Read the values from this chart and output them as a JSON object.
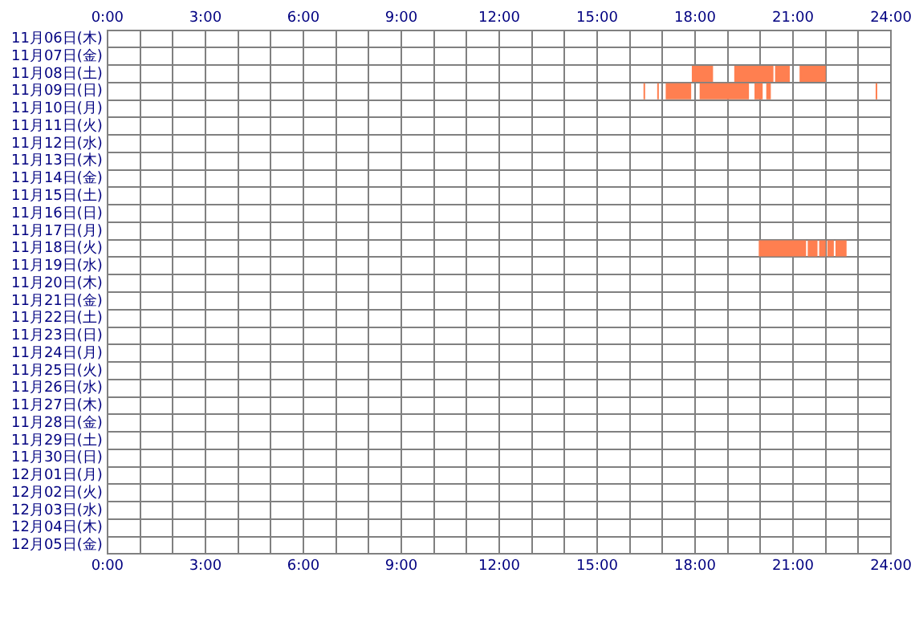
{
  "chart_data": {
    "type": "bar",
    "orientation": "horizontal",
    "categories": [
      "11月06日(木)",
      "11月07日(金)",
      "11月08日(土)",
      "11月09日(日)",
      "11月10日(月)",
      "11月11日(火)",
      "11月12日(水)",
      "11月13日(木)",
      "11月14日(金)",
      "11月15日(土)",
      "11月16日(日)",
      "11月17日(月)",
      "11月18日(火)",
      "11月19日(水)",
      "11月20日(木)",
      "11月21日(金)",
      "11月22日(土)",
      "11月23日(日)",
      "11月24日(月)",
      "11月25日(火)",
      "11月26日(水)",
      "11月27日(木)",
      "11月28日(金)",
      "11月29日(土)",
      "11月30日(日)",
      "12月01日(月)",
      "12月02日(火)",
      "12月03日(水)",
      "12月04日(木)",
      "12月05日(金)"
    ],
    "series": [
      {
        "color": "#ff7f50",
        "base": [
          null,
          null,
          17.9,
          16.42,
          null,
          null,
          null,
          null,
          null,
          null,
          null,
          null,
          19.95,
          null,
          null,
          null,
          null,
          null,
          null,
          null,
          null,
          null,
          null,
          null,
          null,
          null,
          null,
          null,
          null,
          null
        ],
        "values": [
          null,
          null,
          0.65,
          0.05,
          null,
          null,
          null,
          null,
          null,
          null,
          null,
          null,
          1.45,
          null,
          null,
          null,
          null,
          null,
          null,
          null,
          null,
          null,
          null,
          null,
          null,
          null,
          null,
          null,
          null,
          null
        ]
      },
      {
        "color": "#ff7f50",
        "base": [
          null,
          null,
          19.2,
          16.84,
          null,
          null,
          null,
          null,
          null,
          null,
          null,
          null,
          21.45,
          null,
          null,
          null,
          null,
          null,
          null,
          null,
          null,
          null,
          null,
          null,
          null,
          null,
          null,
          null,
          null,
          null
        ],
        "values": [
          null,
          null,
          1.2,
          0.05,
          null,
          null,
          null,
          null,
          null,
          null,
          null,
          null,
          0.3,
          null,
          null,
          null,
          null,
          null,
          null,
          null,
          null,
          null,
          null,
          null,
          null,
          null,
          null,
          null,
          null,
          null
        ]
      },
      {
        "color": "#ff7f50",
        "base": [
          null,
          null,
          20.45,
          17.1,
          null,
          null,
          null,
          null,
          null,
          null,
          null,
          null,
          21.8,
          null,
          null,
          null,
          null,
          null,
          null,
          null,
          null,
          null,
          null,
          null,
          null,
          null,
          null,
          null,
          null,
          null
        ],
        "values": [
          null,
          null,
          0.45,
          0.78,
          null,
          null,
          null,
          null,
          null,
          null,
          null,
          null,
          0.2,
          null,
          null,
          null,
          null,
          null,
          null,
          null,
          null,
          null,
          null,
          null,
          null,
          null,
          null,
          null,
          null,
          null
        ]
      },
      {
        "color": "#ff7f50",
        "base": [
          null,
          null,
          21.2,
          18.14,
          null,
          null,
          null,
          null,
          null,
          null,
          null,
          null,
          22.05,
          null,
          null,
          null,
          null,
          null,
          null,
          null,
          null,
          null,
          null,
          null,
          null,
          null,
          null,
          null,
          null,
          null
        ],
        "values": [
          null,
          null,
          0.8,
          1.51,
          null,
          null,
          null,
          null,
          null,
          null,
          null,
          null,
          0.2,
          null,
          null,
          null,
          null,
          null,
          null,
          null,
          null,
          null,
          null,
          null,
          null,
          null,
          null,
          null,
          null,
          null
        ]
      },
      {
        "color": "#ff7f50",
        "base": [
          null,
          null,
          null,
          19.82,
          null,
          null,
          null,
          null,
          null,
          null,
          null,
          null,
          22.3,
          null,
          null,
          null,
          null,
          null,
          null,
          null,
          null,
          null,
          null,
          null,
          null,
          null,
          null,
          null,
          null,
          null
        ],
        "values": [
          null,
          null,
          null,
          0.25,
          null,
          null,
          null,
          null,
          null,
          null,
          null,
          null,
          0.34,
          null,
          null,
          null,
          null,
          null,
          null,
          null,
          null,
          null,
          null,
          null,
          null,
          null,
          null,
          null,
          null,
          null
        ]
      },
      {
        "color": "#ff7f50",
        "base": [
          null,
          null,
          null,
          20.18,
          null,
          null,
          null,
          null,
          null,
          null,
          null,
          null,
          null,
          null,
          null,
          null,
          null,
          null,
          null,
          null,
          null,
          null,
          null,
          null,
          null,
          null,
          null,
          null,
          null,
          null
        ],
        "values": [
          null,
          null,
          null,
          0.14,
          null,
          null,
          null,
          null,
          null,
          null,
          null,
          null,
          null,
          null,
          null,
          null,
          null,
          null,
          null,
          null,
          null,
          null,
          null,
          null,
          null,
          null,
          null,
          null,
          null,
          null
        ]
      },
      {
        "color": "#ff7f50",
        "base": [
          null,
          null,
          null,
          23.53,
          null,
          null,
          null,
          null,
          null,
          null,
          null,
          null,
          null,
          null,
          null,
          null,
          null,
          null,
          null,
          null,
          null,
          null,
          null,
          null,
          null,
          null,
          null,
          null,
          null,
          null
        ],
        "values": [
          null,
          null,
          null,
          0.05,
          null,
          null,
          null,
          null,
          null,
          null,
          null,
          null,
          null,
          null,
          null,
          null,
          null,
          null,
          null,
          null,
          null,
          null,
          null,
          null,
          null,
          null,
          null,
          null,
          null,
          null
        ]
      }
    ],
    "xlim": [
      0,
      24
    ],
    "xticks": [
      {
        "value": 0,
        "label": "0:00"
      },
      {
        "value": 1,
        "label": null
      },
      {
        "value": 2,
        "label": null
      },
      {
        "value": 3,
        "label": "3:00"
      },
      {
        "value": 4,
        "label": null
      },
      {
        "value": 5,
        "label": null
      },
      {
        "value": 6,
        "label": "6:00"
      },
      {
        "value": 7,
        "label": null
      },
      {
        "value": 8,
        "label": null
      },
      {
        "value": 9,
        "label": "9:00"
      },
      {
        "value": 10,
        "label": null
      },
      {
        "value": 11,
        "label": null
      },
      {
        "value": 12,
        "label": "12:00"
      },
      {
        "value": 13,
        "label": null
      },
      {
        "value": 14,
        "label": null
      },
      {
        "value": 15,
        "label": "15:00"
      },
      {
        "value": 16,
        "label": null
      },
      {
        "value": 17,
        "label": null
      },
      {
        "value": 18,
        "label": "18:00"
      },
      {
        "value": 19,
        "label": null
      },
      {
        "value": 20,
        "label": null
      },
      {
        "value": 21,
        "label": "21:00"
      },
      {
        "value": 22,
        "label": null
      },
      {
        "value": 23,
        "label": null
      },
      {
        "value": 24,
        "label": "24:00"
      }
    ],
    "x2lim": [
      0,
      24
    ],
    "x2ticks": [
      {
        "value": 0,
        "label": "0:00"
      },
      {
        "value": 1,
        "label": null
      },
      {
        "value": 2,
        "label": null
      },
      {
        "value": 3,
        "label": "3:00"
      },
      {
        "value": 4,
        "label": null
      },
      {
        "value": 5,
        "label": null
      },
      {
        "value": 6,
        "label": "6:00"
      },
      {
        "value": 7,
        "label": null
      },
      {
        "value": 8,
        "label": null
      },
      {
        "value": 9,
        "label": "9:00"
      },
      {
        "value": 10,
        "label": null
      },
      {
        "value": 11,
        "label": null
      },
      {
        "value": 12,
        "label": "12:00"
      },
      {
        "value": 13,
        "label": null
      },
      {
        "value": 14,
        "label": null
      },
      {
        "value": 15,
        "label": "15:00"
      },
      {
        "value": 16,
        "label": null
      },
      {
        "value": 17,
        "label": null
      },
      {
        "value": 18,
        "label": "18:00"
      },
      {
        "value": 19,
        "label": null
      },
      {
        "value": 20,
        "label": null
      },
      {
        "value": 21,
        "label": "21:00"
      },
      {
        "value": 22,
        "label": null
      },
      {
        "value": 23,
        "label": null
      },
      {
        "value": 24,
        "label": "24:00"
      }
    ],
    "grid": true,
    "legend": false
  }
}
